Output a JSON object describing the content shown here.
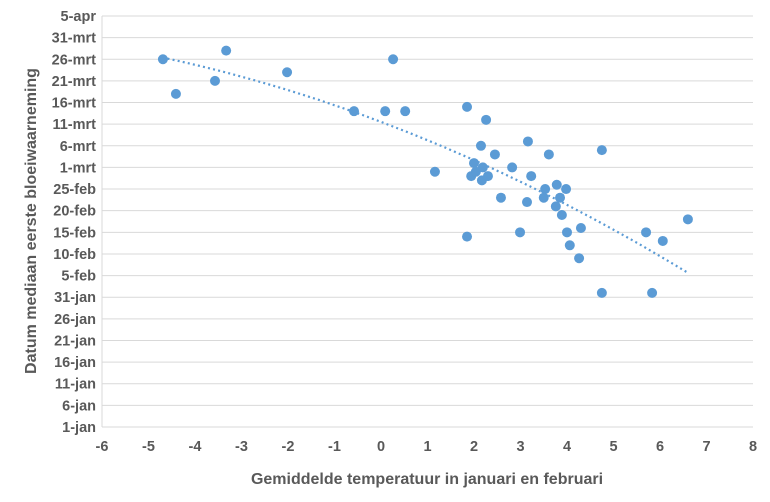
{
  "chart_data": {
    "type": "scatter",
    "xlabel": "Gemiddelde temperatuur in januari en februari",
    "ylabel": "Datum mediaan  eerste bloeiwaarneming",
    "xlim": [
      -6,
      8
    ],
    "ylim": [
      "1-jan",
      "5-apr"
    ],
    "x_ticks": [
      "-6",
      "-5",
      "-4",
      "-3",
      "-2",
      "-1",
      "0",
      "1",
      "2",
      "3",
      "4",
      "5",
      "6",
      "7",
      "8"
    ],
    "y_ticks": [
      "1-jan",
      "6-jan",
      "11-jan",
      "16-jan",
      "21-jan",
      "26-jan",
      "31-jan",
      "5-feb",
      "10-feb",
      "15-feb",
      "20-feb",
      "25-feb",
      "1-mrt",
      "6-mrt",
      "11-mrt",
      "16-mrt",
      "21-mrt",
      "26-mrt",
      "31-mrt",
      "5-apr"
    ],
    "grid": "horizontal",
    "marker_color": "#5B9BD5",
    "trendline": {
      "style": "dotted",
      "kind": "polynomial",
      "color": "#5B9BD5",
      "x_range": [
        -4.7,
        6.6
      ]
    },
    "points": [
      {
        "x": -4.69,
        "y": "26-mrt"
      },
      {
        "x": -4.41,
        "y": "18-mrt"
      },
      {
        "x": -3.57,
        "y": "21-mrt"
      },
      {
        "x": -3.33,
        "y": "28-mrt"
      },
      {
        "x": -2.02,
        "y": "23-mrt"
      },
      {
        "x": -0.58,
        "y": "14-mrt"
      },
      {
        "x": 0.09,
        "y": "14-mrt"
      },
      {
        "x": 0.26,
        "y": "26-mrt"
      },
      {
        "x": 0.52,
        "y": "14-mrt"
      },
      {
        "x": 1.16,
        "y": "29-feb"
      },
      {
        "x": 1.85,
        "y": "15-mrt"
      },
      {
        "x": 2.26,
        "y": "12-mrt"
      },
      {
        "x": 2.15,
        "y": "6-mrt"
      },
      {
        "x": 2.45,
        "y": "4-mrt"
      },
      {
        "x": 2.0,
        "y": "2-mrt"
      },
      {
        "x": 1.94,
        "y": "28-feb"
      },
      {
        "x": 2.04,
        "y": "29-feb"
      },
      {
        "x": 2.19,
        "y": "1-mrt"
      },
      {
        "x": 2.17,
        "y": "27-feb"
      },
      {
        "x": 2.3,
        "y": "28-feb"
      },
      {
        "x": 2.82,
        "y": "1-mrt"
      },
      {
        "x": 3.16,
        "y": "7-mrt"
      },
      {
        "x": 3.23,
        "y": "28-feb"
      },
      {
        "x": 2.58,
        "y": "23-feb"
      },
      {
        "x": 3.14,
        "y": "22-feb"
      },
      {
        "x": 3.61,
        "y": "4-mrt"
      },
      {
        "x": 3.53,
        "y": "25-feb"
      },
      {
        "x": 3.78,
        "y": "26-feb"
      },
      {
        "x": 3.5,
        "y": "23-feb"
      },
      {
        "x": 3.98,
        "y": "25-feb"
      },
      {
        "x": 3.85,
        "y": "23-feb"
      },
      {
        "x": 3.76,
        "y": "21-feb"
      },
      {
        "x": 3.89,
        "y": "19-feb"
      },
      {
        "x": 4.0,
        "y": "15-feb"
      },
      {
        "x": 4.3,
        "y": "16-feb"
      },
      {
        "x": 4.06,
        "y": "12-feb"
      },
      {
        "x": 4.26,
        "y": "9-feb"
      },
      {
        "x": 4.75,
        "y": "5-mrt"
      },
      {
        "x": 1.85,
        "y": "14-feb"
      },
      {
        "x": 2.99,
        "y": "15-feb"
      },
      {
        "x": 4.75,
        "y": "1-feb"
      },
      {
        "x": 5.7,
        "y": "15-feb"
      },
      {
        "x": 6.06,
        "y": "13-feb"
      },
      {
        "x": 6.6,
        "y": "18-feb"
      },
      {
        "x": 5.83,
        "y": "1-feb"
      }
    ]
  }
}
